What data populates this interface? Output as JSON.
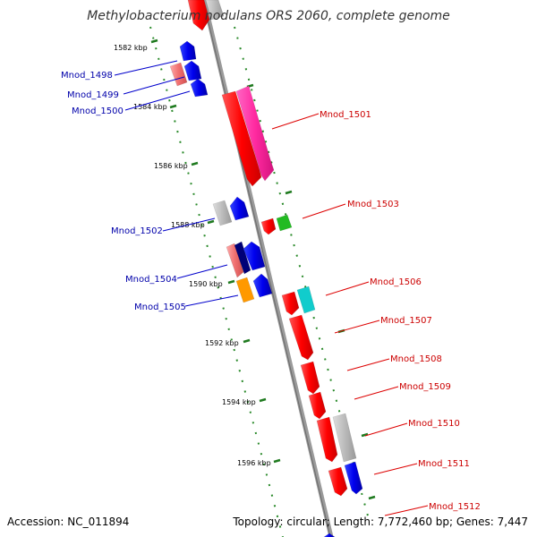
{
  "title": "Methylobacterium nodulans ORS 2060, complete genome",
  "accession": "Accession: NC_011894",
  "summary": "Topology: circular; Length: 7,772,460 bp; Genes: 7,447",
  "kbp_labels": [
    "1582 kbp",
    "1584 kbp",
    "1586 kbp",
    "1588 kbp",
    "1590 kbp",
    "1592 kbp",
    "1594 kbp",
    "1596 kbp"
  ],
  "left_genes": [
    "Mnod_1498",
    "Mnod_1499",
    "Mnod_1500",
    "Mnod_1502",
    "Mnod_1504",
    "Mnod_1505"
  ],
  "right_genes": [
    "Mnod_1501",
    "Mnod_1503",
    "Mnod_1506",
    "Mnod_1507",
    "Mnod_1508",
    "Mnod_1509",
    "Mnod_1510",
    "Mnod_1511",
    "Mnod_1512"
  ],
  "colors": {
    "backbone": "#888888",
    "track_dots": "#2a8a2a",
    "left_label": "#0000aa",
    "right_label": "#cc0000",
    "red": "#ff0000",
    "pink": "#ff2aa0",
    "salmon": "#f07070",
    "grey": "#bbbbbb",
    "blue": "#0000ee",
    "navy": "#000077",
    "orange": "#ff9900",
    "green": "#22bb22",
    "cyan": "#11cccc"
  }
}
